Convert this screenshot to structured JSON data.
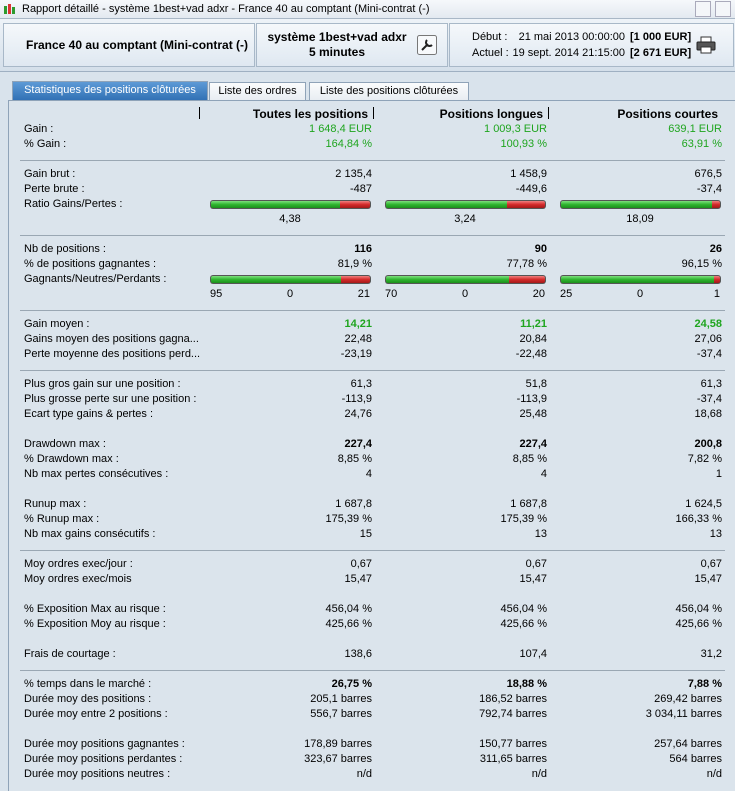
{
  "window": {
    "title": "Rapport détaillé - système 1best+vad adxr  - France 40 au comptant (Mini-contrat  (-)"
  },
  "header": {
    "instrument": "France 40 au comptant (Mini-contrat  (-)",
    "system": "système 1best+vad adxr",
    "timeframe": "5 minutes",
    "start_label": "Début :",
    "start_date": "21 mai 2013 00:00:00",
    "start_capital": "[1 000 EUR]",
    "now_label": "Actuel :",
    "now_date": "19 sept. 2014 21:15:00",
    "now_capital": "[2 671 EUR]"
  },
  "tabs": [
    "Statistiques des positions clôturées",
    "Liste des ordres",
    "Liste des positions clôturées"
  ],
  "columns": [
    "Toutes les positions",
    "Positions longues",
    "Positions courtes"
  ],
  "sections": [
    {
      "groups": [
        {
          "rows": [
            {
              "label": "Gain :",
              "values": [
                "1 648,4 EUR",
                "1 009,3 EUR",
                "639,1 EUR"
              ],
              "style": "green"
            },
            {
              "label": "% Gain :",
              "values": [
                "164,84 %",
                "100,93 %",
                "63,91 %"
              ],
              "style": "green"
            }
          ]
        }
      ]
    },
    {
      "groups": [
        {
          "rows": [
            {
              "label": "Gain brut :",
              "values": [
                "2 135,4",
                "1 458,9",
                "676,5"
              ]
            },
            {
              "label": "Perte brute :",
              "values": [
                "-487",
                "-449,6",
                "-37,4"
              ]
            },
            {
              "label": "Ratio Gains/Pertes :",
              "bar": "ratio",
              "values": [
                "4,38",
                "3,24",
                "18,09"
              ]
            }
          ]
        }
      ]
    },
    {
      "groups": [
        {
          "rows": [
            {
              "label": "Nb de positions :",
              "values": [
                "116",
                "90",
                "26"
              ],
              "style": "bold"
            },
            {
              "label": "% de positions gagnantes :",
              "values": [
                "81,9 %",
                "77,78 %",
                "96,15 %"
              ]
            },
            {
              "label": "Gagnants/Neutres/Perdants :",
              "bar": "counts",
              "values": [
                [
                  "95",
                  "0",
                  "21"
                ],
                [
                  "70",
                  "0",
                  "20"
                ],
                [
                  "25",
                  "0",
                  "1"
                ]
              ]
            }
          ]
        }
      ]
    },
    {
      "groups": [
        {
          "rows": [
            {
              "label": "Gain moyen :",
              "values": [
                "14,21",
                "11,21",
                "24,58"
              ],
              "style": "green-bold"
            },
            {
              "label": "Gains moyen des positions gagna...",
              "values": [
                "22,48",
                "20,84",
                "27,06"
              ]
            },
            {
              "label": "Perte moyenne des positions perd...",
              "values": [
                "-23,19",
                "-22,48",
                "-37,4"
              ]
            }
          ]
        }
      ]
    },
    {
      "groups": [
        {
          "rows": [
            {
              "label": "Plus gros gain sur une position :",
              "values": [
                "61,3",
                "51,8",
                "61,3"
              ]
            },
            {
              "label": "Plus grosse perte sur une position :",
              "values": [
                "-113,9",
                "-113,9",
                "-37,4"
              ]
            },
            {
              "label": "Ecart type gains & pertes :",
              "values": [
                "24,76",
                "25,48",
                "18,68"
              ]
            }
          ]
        },
        {
          "rows": [
            {
              "label": "Drawdown max :",
              "values": [
                "227,4",
                "227,4",
                "200,8"
              ],
              "style": "bold"
            },
            {
              "label": "% Drawdown max :",
              "values": [
                "8,85 %",
                "8,85 %",
                "7,82 %"
              ]
            },
            {
              "label": "Nb max pertes consécutives :",
              "values": [
                "4",
                "4",
                "1"
              ]
            }
          ]
        },
        {
          "rows": [
            {
              "label": "Runup max :",
              "values": [
                "1 687,8",
                "1 687,8",
                "1 624,5"
              ]
            },
            {
              "label": "% Runup max :",
              "values": [
                "175,39 %",
                "175,39 %",
                "166,33 %"
              ]
            },
            {
              "label": "Nb max gains consécutifs :",
              "values": [
                "15",
                "13",
                "13"
              ]
            }
          ]
        }
      ]
    },
    {
      "groups": [
        {
          "rows": [
            {
              "label": "Moy ordres exec/jour :",
              "values": [
                "0,67",
                "0,67",
                "0,67"
              ]
            },
            {
              "label": "Moy ordres exec/mois",
              "values": [
                "15,47",
                "15,47",
                "15,47"
              ]
            }
          ]
        },
        {
          "rows": [
            {
              "label": "% Exposition Max au risque :",
              "values": [
                "456,04 %",
                "456,04 %",
                "456,04 %"
              ]
            },
            {
              "label": "% Exposition Moy au risque :",
              "values": [
                "425,66 %",
                "425,66 %",
                "425,66 %"
              ]
            }
          ]
        },
        {
          "rows": [
            {
              "label": "Frais de courtage :",
              "values": [
                "138,6",
                "107,4",
                "31,2"
              ]
            }
          ]
        }
      ]
    },
    {
      "groups": [
        {
          "rows": [
            {
              "label": "% temps dans le marché :",
              "values": [
                "26,75 %",
                "18,88 %",
                "7,88 %"
              ],
              "style": "bold"
            },
            {
              "label": "Durée moy des positions :",
              "values": [
                "205,1 barres",
                "186,52 barres",
                "269,42 barres"
              ]
            },
            {
              "label": "Durée moy entre 2 positions :",
              "values": [
                "556,7 barres",
                "792,74 barres",
                "3 034,11 barres"
              ]
            }
          ]
        },
        {
          "rows": [
            {
              "label": "Durée moy positions gagnantes :",
              "values": [
                "178,89 barres",
                "150,77 barres",
                "257,64 barres"
              ]
            },
            {
              "label": "Durée moy positions perdantes :",
              "values": [
                "323,67 barres",
                "311,65 barres",
                "564 barres"
              ]
            },
            {
              "label": "Durée moy positions neutres :",
              "values": [
                "n/d",
                "n/d",
                "n/d"
              ]
            }
          ]
        }
      ]
    }
  ]
}
